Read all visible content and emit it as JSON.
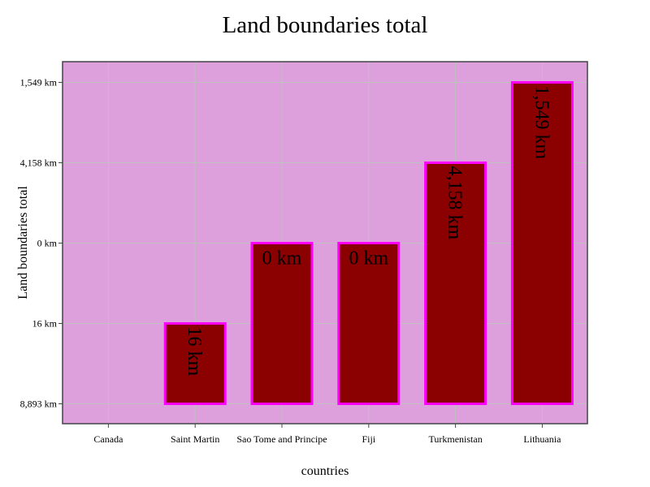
{
  "chart_data": {
    "type": "bar",
    "title": "Land boundaries total",
    "xlabel": "countries",
    "ylabel": "Land boundaries total",
    "categories": [
      "Canada",
      "Saint Martin",
      "Sao Tome and Principe",
      "Fiji",
      "Turkmenistan",
      "Lithuania"
    ],
    "y_tick_labels": [
      "8,893 km",
      "16 km",
      "0 km",
      "4,158 km",
      "1,549 km"
    ],
    "bars": [
      {
        "category": "Canada",
        "level": null,
        "label": ""
      },
      {
        "category": "Saint Martin",
        "level": 1,
        "label": "16 km"
      },
      {
        "category": "Sao Tome and Principe",
        "level": 2,
        "label": "0 km"
      },
      {
        "category": "Fiji",
        "level": 2,
        "label": "0 km"
      },
      {
        "category": "Turkmenistan",
        "level": 3,
        "label": "4,158 km"
      },
      {
        "category": "Lithuania",
        "level": 4,
        "label": "1,549 km"
      }
    ],
    "grid": true,
    "colors": {
      "plot_background": "#dda0dd",
      "bar_fill": "#8b0000",
      "bar_edge": "#ff00ff",
      "grid": "#c0c0c0",
      "frame": "#444444"
    }
  }
}
